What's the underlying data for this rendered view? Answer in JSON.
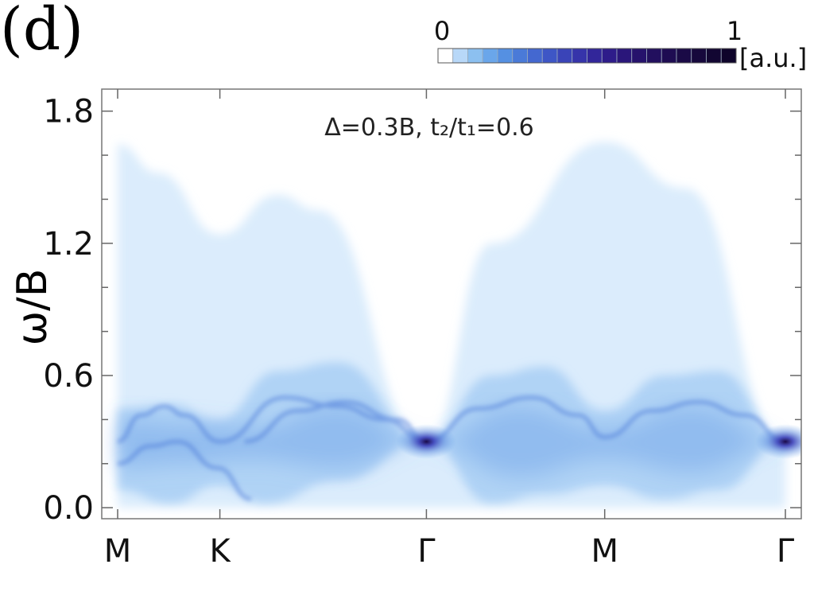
{
  "panel_label": "(d)",
  "chart_data": {
    "type": "heatmap",
    "title": "",
    "annotation": "Δ=0.3B, t₂/t₁=0.6",
    "ylabel": "ω/B",
    "xlabel": "",
    "ylim": [
      -0.05,
      1.9
    ],
    "y_ticks": [
      0.0,
      0.6,
      1.2,
      1.8
    ],
    "y_tick_labels": [
      "0.0",
      "0.6",
      "1.2",
      "1.8"
    ],
    "x_ticks": [
      {
        "label": "M",
        "pos": 0.0
      },
      {
        "label": "K",
        "pos": 0.1531
      },
      {
        "label": "Γ",
        "pos": 0.4624
      },
      {
        "label": "M",
        "pos": 0.7294
      },
      {
        "label": "Γ",
        "pos": 1.0
      }
    ],
    "continuum_upper_edge": [
      {
        "k": 0.0,
        "w": 1.65
      },
      {
        "k": 0.06,
        "w": 1.52
      },
      {
        "k": 0.1531,
        "w": 1.24
      },
      {
        "k": 0.24,
        "w": 1.42
      },
      {
        "k": 0.3,
        "w": 1.35
      },
      {
        "k": 0.4624,
        "w": 0.3
      },
      {
        "k": 0.56,
        "w": 1.2
      },
      {
        "k": 0.7294,
        "w": 1.66
      },
      {
        "k": 0.85,
        "w": 1.45
      },
      {
        "k": 1.0,
        "w": 0.3
      }
    ],
    "flat_band_energy": 0.3,
    "intensity_maxima": [
      {
        "k": 0.4624,
        "w": 0.3
      },
      {
        "k": 1.0,
        "w": 0.3
      }
    ],
    "colorbar": {
      "min_label": "0",
      "max_label": "1",
      "unit": "[a.u.]",
      "colors": [
        "#ffffff",
        "#b8d8f8",
        "#8cc0f0",
        "#6aa6ea",
        "#5590e2",
        "#4a7ad8",
        "#4468d0",
        "#3e56c6",
        "#3a44b8",
        "#3634aa",
        "#32269a",
        "#2e1c8a",
        "#2a167a",
        "#26126c",
        "#220f5e",
        "#1e0c52",
        "#1a0a46",
        "#16083c",
        "#120632",
        "#0e042a"
      ]
    }
  }
}
